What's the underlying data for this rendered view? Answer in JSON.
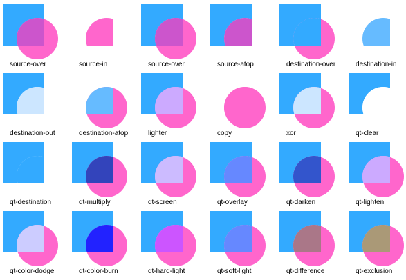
{
  "colors": {
    "square": "#33aaff",
    "circle": "#ff66cc",
    "background": "#ffffff"
  },
  "cells": [
    {
      "label": "source-over",
      "fills": {
        "square": "#33aaff",
        "circle": "#ff66cc",
        "overlap": "#cc55cc"
      }
    },
    {
      "label": "source-in",
      "fills": {
        "square": null,
        "circle": null,
        "overlap": "#ff66cc"
      }
    },
    {
      "label": "source-over",
      "fills": {
        "square": "#33aaff",
        "circle": "#ff66cc",
        "overlap": "#cc55cc"
      }
    },
    {
      "label": "source-atop",
      "fills": {
        "square": "#33aaff",
        "circle": null,
        "overlap": "#cc55cc"
      }
    },
    {
      "label": "destination-over",
      "fills": {
        "square": "#33aaff",
        "circle": "#ff66cc",
        "overlap": "#33aaff"
      }
    },
    {
      "label": "destination-in",
      "fills": {
        "square": null,
        "circle": null,
        "overlap": "#66bbff"
      }
    },
    {
      "label": "destination-out",
      "fills": {
        "square": "#33aaff",
        "circle": null,
        "overlap": "#cce6ff"
      }
    },
    {
      "label": "destination-atop",
      "fills": {
        "square": null,
        "circle": "#ff66cc",
        "overlap": "#66bbff"
      }
    },
    {
      "label": "lighter",
      "fills": {
        "square": "#33aaff",
        "circle": "#ff66cc",
        "overlap": "#ccaaff"
      }
    },
    {
      "label": "copy",
      "fills": {
        "square": null,
        "circle": "#ff66cc",
        "overlap": "#ff66cc"
      }
    },
    {
      "label": "xor",
      "fills": {
        "square": "#33aaff",
        "circle": "#ff66cc",
        "overlap": "#cce6ff"
      }
    },
    {
      "label": "qt-clear",
      "fills": {
        "square": "#33aaff",
        "circle": null,
        "overlap": "#ffffff"
      }
    },
    {
      "label": "qt-destination",
      "fills": {
        "square": "#33aaff",
        "circle": null,
        "overlap": "#33aaff"
      }
    },
    {
      "label": "qt-multiply",
      "fills": {
        "square": "#33aaff",
        "circle": "#ff66cc",
        "overlap": "#3344bb"
      }
    },
    {
      "label": "qt-screen",
      "fills": {
        "square": "#33aaff",
        "circle": "#ff66cc",
        "overlap": "#ccbbff"
      }
    },
    {
      "label": "qt-overlay",
      "fills": {
        "square": "#33aaff",
        "circle": "#ff66cc",
        "overlap": "#6688ff"
      }
    },
    {
      "label": "qt-darken",
      "fills": {
        "square": "#33aaff",
        "circle": "#ff66cc",
        "overlap": "#3355cc"
      }
    },
    {
      "label": "qt-lighten",
      "fills": {
        "square": "#33aaff",
        "circle": "#ff66cc",
        "overlap": "#ccaaff"
      }
    },
    {
      "label": "qt-color-dodge",
      "fills": {
        "square": "#33aaff",
        "circle": "#ff66cc",
        "overlap": "#ccccff"
      }
    },
    {
      "label": "qt-color-burn",
      "fills": {
        "square": "#33aaff",
        "circle": "#ff66cc",
        "overlap": "#2222ff"
      }
    },
    {
      "label": "qt-hard-light",
      "fills": {
        "square": "#33aaff",
        "circle": "#ff66cc",
        "overlap": "#cc55ff"
      }
    },
    {
      "label": "qt-soft-light",
      "fills": {
        "square": "#33aaff",
        "circle": "#ff66cc",
        "overlap": "#6688ff"
      }
    },
    {
      "label": "qt-difference",
      "fills": {
        "square": "#33aaff",
        "circle": "#ff66cc",
        "overlap": "#aa7788"
      }
    },
    {
      "label": "qt-exclusion",
      "fills": {
        "square": "#33aaff",
        "circle": "#ff66cc",
        "overlap": "#aa9977"
      }
    }
  ]
}
